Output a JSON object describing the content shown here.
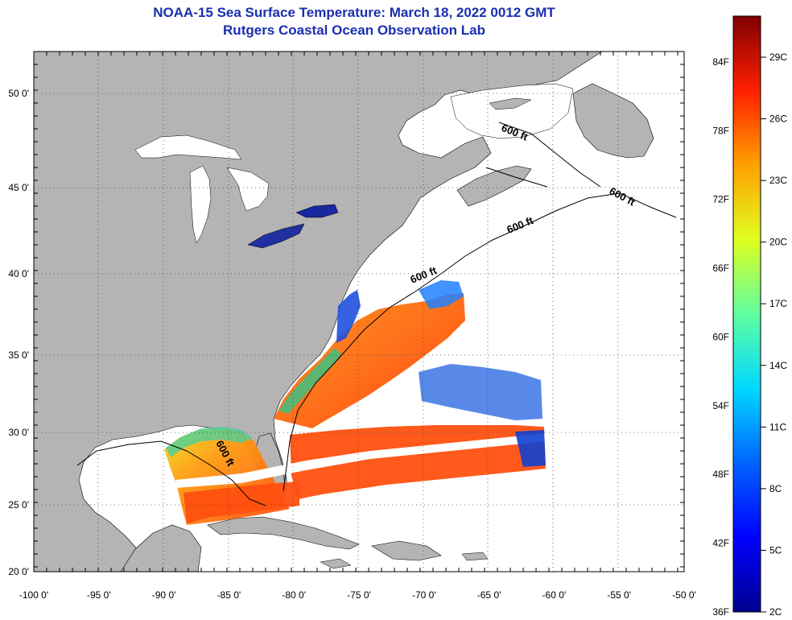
{
  "title": "NOAA-15 Sea Surface Temperature:  March 18, 2022 0012 GMT",
  "subtitle": "Rutgers Coastal Ocean Observation Lab",
  "map": {
    "lon_range": [
      -100,
      -50
    ],
    "lat_range": [
      20,
      52.5
    ],
    "lon_ticks": [
      "-100 0'",
      "-95 0'",
      "-90 0'",
      "-85 0'",
      "-80 0'",
      "-75 0'",
      "-70 0'",
      "-65 0'",
      "-60 0'",
      "-55 0'",
      "-50 0'"
    ],
    "lat_ticks": [
      "20 0'",
      "25 0'",
      "30 0'",
      "35 0'",
      "40 0'",
      "45 0'",
      "50 0'"
    ],
    "contour_label": "600 ft",
    "land_color": "#b4b4b4",
    "ocean_color": "#ffffff",
    "grid": "dotted"
  },
  "colorbar": {
    "fahrenheit_labels": [
      "36F",
      "42F",
      "48F",
      "54F",
      "60F",
      "66F",
      "72F",
      "78F",
      "84F"
    ],
    "celsius_labels": [
      "2C",
      "5C",
      "8C",
      "11C",
      "14C",
      "17C",
      "20C",
      "23C",
      "26C",
      "29C"
    ],
    "colors": [
      "#00008f",
      "#0000ff",
      "#0080ff",
      "#00ffff",
      "#80ff80",
      "#ffff00",
      "#ff8000",
      "#ff0000",
      "#800000"
    ]
  }
}
